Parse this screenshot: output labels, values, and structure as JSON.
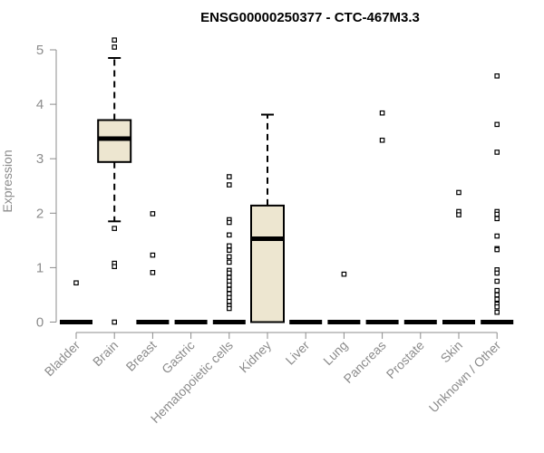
{
  "chart_data": {
    "type": "boxplot",
    "title": "ENSG00000250377 - CTC-467M3.3",
    "xlabel": "",
    "ylabel": "Expression",
    "ylim": [
      0,
      5.2
    ],
    "yticks": [
      0,
      1,
      2,
      3,
      4,
      5
    ],
    "box_fill": "#ede6d0",
    "categories": [
      "Bladder",
      "Brain",
      "Breast",
      "Gastric",
      "Hematopoietic cells",
      "Kidney",
      "Liver",
      "Lung",
      "Pancreas",
      "Prostate",
      "Skin",
      "Unknown / Other"
    ],
    "boxes": [
      {
        "category": "Bladder",
        "q1": 0,
        "median": 0,
        "q3": 0,
        "whisker_low": 0,
        "whisker_high": 0,
        "outliers": [
          0.72
        ]
      },
      {
        "category": "Brain",
        "q1": 2.94,
        "median": 3.37,
        "q3": 3.71,
        "whisker_low": 1.85,
        "whisker_high": 4.85,
        "outliers": [
          5.18,
          5.05,
          1.72,
          1.08,
          1.02,
          0
        ]
      },
      {
        "category": "Breast",
        "q1": 0,
        "median": 0,
        "q3": 0,
        "whisker_low": 0,
        "whisker_high": 0,
        "outliers": [
          1.99,
          1.23,
          0.91
        ]
      },
      {
        "category": "Gastric",
        "q1": 0,
        "median": 0,
        "q3": 0,
        "whisker_low": 0,
        "whisker_high": 0,
        "outliers": []
      },
      {
        "category": "Hematopoietic cells",
        "q1": 0,
        "median": 0,
        "q3": 0,
        "whisker_low": 0,
        "whisker_high": 0,
        "outliers": [
          2.67,
          2.52,
          1.88,
          1.83,
          1.6,
          1.4,
          1.32,
          1.2,
          1.1,
          0.95,
          0.9,
          0.82,
          0.75,
          0.68,
          0.6,
          0.52,
          0.45,
          0.38,
          0.3,
          0.25
        ]
      },
      {
        "category": "Kidney",
        "q1": 0,
        "median": 1.53,
        "q3": 2.14,
        "whisker_low": 0,
        "whisker_high": 3.81,
        "outliers": []
      },
      {
        "category": "Liver",
        "q1": 0,
        "median": 0,
        "q3": 0,
        "whisker_low": 0,
        "whisker_high": 0,
        "outliers": []
      },
      {
        "category": "Lung",
        "q1": 0,
        "median": 0,
        "q3": 0,
        "whisker_low": 0,
        "whisker_high": 0,
        "outliers": [
          0.88
        ]
      },
      {
        "category": "Pancreas",
        "q1": 0,
        "median": 0,
        "q3": 0,
        "whisker_low": 0,
        "whisker_high": 0,
        "outliers": [
          3.84,
          3.34
        ]
      },
      {
        "category": "Prostate",
        "q1": 0,
        "median": 0,
        "q3": 0,
        "whisker_low": 0,
        "whisker_high": 0,
        "outliers": []
      },
      {
        "category": "Skin",
        "q1": 0,
        "median": 0,
        "q3": 0,
        "whisker_low": 0,
        "whisker_high": 0,
        "outliers": [
          2.38,
          2.03,
          1.97
        ]
      },
      {
        "category": "Unknown / Other",
        "q1": 0,
        "median": 0,
        "q3": 0,
        "whisker_low": 0,
        "whisker_high": 0,
        "outliers": [
          4.52,
          3.63,
          3.12,
          2.03,
          1.98,
          1.9,
          1.58,
          1.35,
          1.33,
          0.96,
          0.9,
          0.75,
          0.58,
          0.5,
          0.42,
          0.33,
          0.28,
          0.18
        ]
      }
    ]
  }
}
